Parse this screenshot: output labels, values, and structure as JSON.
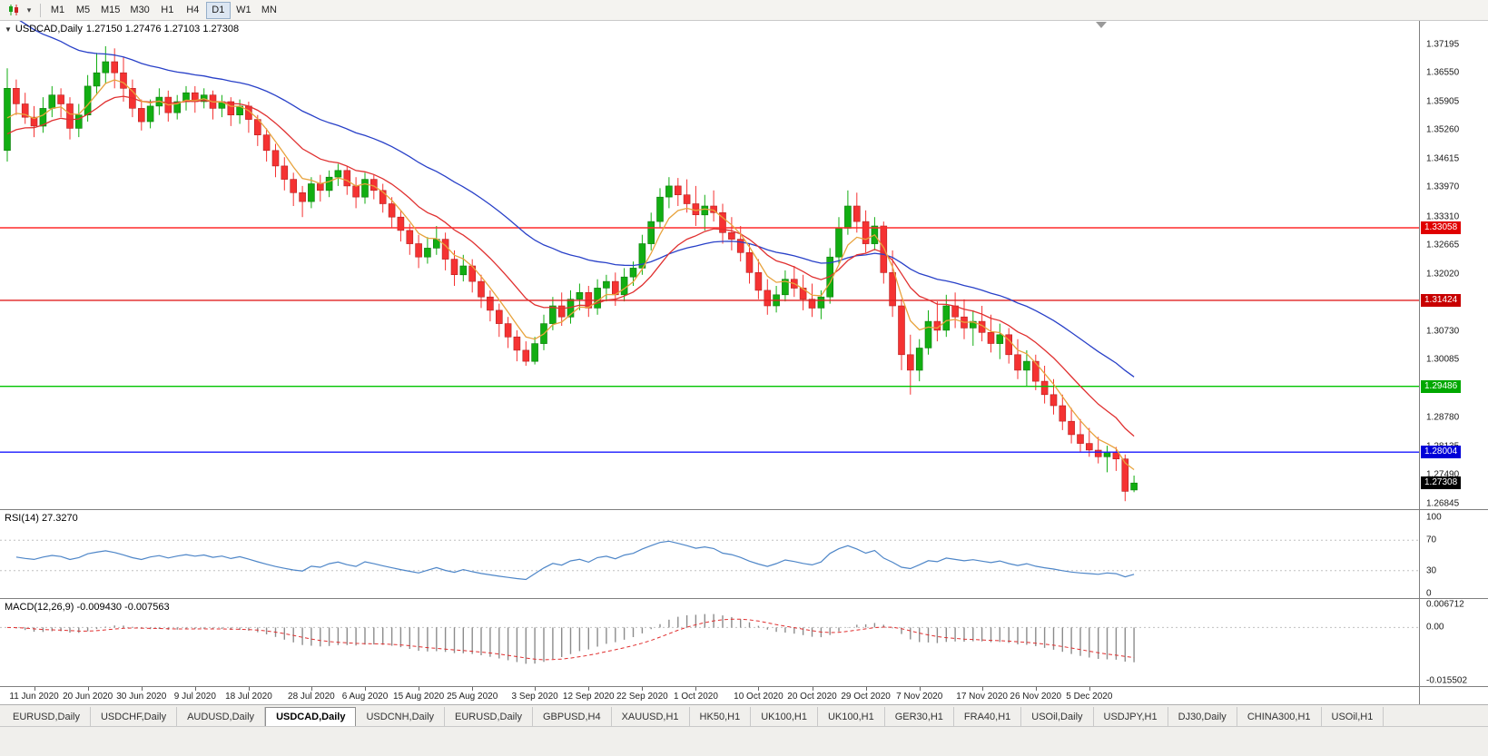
{
  "toolbar": {
    "dropdown_icon": "▾",
    "timeframes": [
      "M1",
      "M5",
      "M15",
      "M30",
      "H1",
      "H4",
      "D1",
      "W1",
      "MN"
    ],
    "selected": "D1"
  },
  "main_chart": {
    "marker_icon": "▼",
    "symbol": "USDCAD,Daily",
    "ohlc_text": "1.27150 1.27476 1.27103 1.27308"
  },
  "tabs": {
    "active_index": 3,
    "items": [
      "EURUSD,Daily",
      "USDCHF,Daily",
      "AUDUSD,Daily",
      "USDCAD,Daily",
      "USDCNH,Daily",
      "EURUSD,Daily",
      "GBPUSD,H4",
      "XAUUSD,H1",
      "HK50,H1",
      "UK100,H1",
      "UK100,H1",
      "GER30,H1",
      "FRA40,H1",
      "USOil,Daily",
      "USDJPY,H1",
      "DJ30,Daily",
      "CHINA300,H1",
      "USOil,H1"
    ]
  },
  "colors": {
    "candle_up": "#12AE12",
    "candle_up_border": "#0A7A0A",
    "candle_down": "#F53232",
    "candle_down_border": "#B61E1E",
    "grid_dash": "#C0C0C0",
    "shift_marker": "#999999"
  },
  "chart_data": {
    "type": "candlestick",
    "title": "USDCAD,Daily",
    "current_ohlc": {
      "open": "1.27150",
      "high": "1.27476",
      "low": "1.27103",
      "close": "1.27308"
    },
    "price_axis_range": [
      1.2672,
      1.3772
    ],
    "y_ticks": [
      "1.37195",
      "1.36550",
      "1.35905",
      "1.35260",
      "1.34615",
      "1.33970",
      "1.33310",
      "1.32665",
      "1.32020",
      "1.31375",
      "1.30730",
      "1.30085",
      "1.29440",
      "1.28780",
      "1.28135",
      "1.27490",
      "1.26845"
    ],
    "horizontal_lines": [
      {
        "label": "1.33058",
        "value": 1.33058,
        "color": "#FF2A2A",
        "badge": "#E00000"
      },
      {
        "label": "1.31424",
        "value": 1.31424,
        "color": "#E02020",
        "badge": "#C80000"
      },
      {
        "label": "1.29486",
        "value": 1.29486,
        "color": "#00C400",
        "badge": "#00A800"
      },
      {
        "label": "1.28004",
        "value": 1.28004,
        "color": "#1A1AFF",
        "badge": "#0000D8"
      }
    ],
    "current_price": {
      "label": "1.27308",
      "value": 1.27308,
      "badge": "#000000"
    },
    "moving_averages": [
      {
        "name": "ma-slow-blue",
        "period": 34,
        "seed": 1.38,
        "color": "#2840C8"
      },
      {
        "name": "ma-medium-red",
        "period": 13,
        "seed": 1.35,
        "color": "#E03030"
      },
      {
        "name": "ma-fast-orange",
        "period": 5,
        "seed": 1.352,
        "color": "#E8A33D"
      }
    ],
    "indicators": [
      {
        "name": "RSI",
        "label": "RSI(14) 27.3270",
        "period": 14,
        "last_value": 27.327,
        "ticks": [
          "100",
          "70",
          "30",
          "0"
        ],
        "levels": [
          70,
          30
        ],
        "range": [
          0,
          100
        ],
        "line_color": "#4E86C8"
      },
      {
        "name": "MACD",
        "label": "MACD(12,26,9) -0.009430 -0.007563",
        "fast": 12,
        "slow": 26,
        "signal": 9,
        "last_main": -0.00943,
        "last_signal": -0.007563,
        "ticks": [
          {
            "text": "0.006712",
            "value": 0.006712
          },
          {
            "text": "0.00",
            "value": 0
          },
          {
            "text": "-0.015502",
            "value": -0.015502
          }
        ],
        "range": [
          -0.015502,
          0.006712
        ],
        "histogram_color": "#8C8C8C",
        "signal_color": "#E03030"
      }
    ],
    "x_labels": [
      {
        "text": "11 Jun 2020",
        "index": 3
      },
      {
        "text": "20 Jun 2020",
        "index": 9
      },
      {
        "text": "30 Jun 2020",
        "index": 15
      },
      {
        "text": "9 Jul 2020",
        "index": 21
      },
      {
        "text": "18 Jul 2020",
        "index": 27
      },
      {
        "text": "28 Jul 2020",
        "index": 34
      },
      {
        "text": "6 Aug 2020",
        "index": 40
      },
      {
        "text": "15 Aug 2020",
        "index": 46
      },
      {
        "text": "25 Aug 2020",
        "index": 52
      },
      {
        "text": "3 Sep 2020",
        "index": 59
      },
      {
        "text": "12 Sep 2020",
        "index": 65
      },
      {
        "text": "22 Sep 2020",
        "index": 71
      },
      {
        "text": "1 Oct 2020",
        "index": 77
      },
      {
        "text": "10 Oct 2020",
        "index": 84
      },
      {
        "text": "20 Oct 2020",
        "index": 90
      },
      {
        "text": "29 Oct 2020",
        "index": 96
      },
      {
        "text": "7 Nov 2020",
        "index": 102
      },
      {
        "text": "17 Nov 2020",
        "index": 109
      },
      {
        "text": "26 Nov 2020",
        "index": 115
      },
      {
        "text": "5 Dec 2020",
        "index": 121
      }
    ],
    "candles": [
      [
        1.348,
        1.3665,
        1.3455,
        1.362
      ],
      [
        1.362,
        1.364,
        1.356,
        1.3585
      ],
      [
        1.3585,
        1.361,
        1.354,
        1.3555
      ],
      [
        1.3555,
        1.358,
        1.351,
        1.3535
      ],
      [
        1.3535,
        1.36,
        1.352,
        1.3575
      ],
      [
        1.3575,
        1.3625,
        1.3555,
        1.3605
      ],
      [
        1.3605,
        1.362,
        1.3555,
        1.3585
      ],
      [
        1.3585,
        1.36,
        1.3505,
        1.353
      ],
      [
        1.353,
        1.3585,
        1.351,
        1.356
      ],
      [
        1.356,
        1.365,
        1.3545,
        1.3625
      ],
      [
        1.3625,
        1.37,
        1.3605,
        1.3655
      ],
      [
        1.3655,
        1.3715,
        1.363,
        1.368
      ],
      [
        1.368,
        1.371,
        1.362,
        1.3655
      ],
      [
        1.3655,
        1.369,
        1.359,
        1.362
      ],
      [
        1.362,
        1.364,
        1.3555,
        1.3575
      ],
      [
        1.3575,
        1.3595,
        1.3525,
        1.3545
      ],
      [
        1.3545,
        1.3595,
        1.353,
        1.358
      ],
      [
        1.358,
        1.362,
        1.356,
        1.36
      ],
      [
        1.36,
        1.3615,
        1.3545,
        1.3565
      ],
      [
        1.3565,
        1.3605,
        1.355,
        1.359
      ],
      [
        1.359,
        1.3625,
        1.357,
        1.361
      ],
      [
        1.361,
        1.3625,
        1.3565,
        1.359
      ],
      [
        1.359,
        1.362,
        1.3575,
        1.3605
      ],
      [
        1.3605,
        1.3615,
        1.355,
        1.3575
      ],
      [
        1.3575,
        1.3605,
        1.3555,
        1.359
      ],
      [
        1.359,
        1.36,
        1.3535,
        1.356
      ],
      [
        1.356,
        1.3595,
        1.354,
        1.358
      ],
      [
        1.358,
        1.359,
        1.352,
        1.355
      ],
      [
        1.355,
        1.356,
        1.349,
        1.3515
      ],
      [
        1.3515,
        1.353,
        1.3455,
        1.348
      ],
      [
        1.348,
        1.3495,
        1.342,
        1.3445
      ],
      [
        1.3445,
        1.3465,
        1.339,
        1.3415
      ],
      [
        1.3415,
        1.343,
        1.3355,
        1.3385
      ],
      [
        1.3385,
        1.34,
        1.333,
        1.3365
      ],
      [
        1.3365,
        1.342,
        1.335,
        1.3405
      ],
      [
        1.3405,
        1.3425,
        1.3365,
        1.339
      ],
      [
        1.339,
        1.3435,
        1.3375,
        1.342
      ],
      [
        1.342,
        1.345,
        1.34,
        1.3435
      ],
      [
        1.3435,
        1.3445,
        1.338,
        1.34
      ],
      [
        1.34,
        1.342,
        1.335,
        1.3375
      ],
      [
        1.3375,
        1.343,
        1.336,
        1.3415
      ],
      [
        1.3415,
        1.3425,
        1.337,
        1.339
      ],
      [
        1.339,
        1.3405,
        1.334,
        1.336
      ],
      [
        1.336,
        1.3375,
        1.3305,
        1.333
      ],
      [
        1.333,
        1.3345,
        1.3275,
        1.33
      ],
      [
        1.33,
        1.3315,
        1.3245,
        1.327
      ],
      [
        1.327,
        1.329,
        1.3215,
        1.324
      ],
      [
        1.324,
        1.3285,
        1.3225,
        1.326
      ],
      [
        1.326,
        1.331,
        1.3245,
        1.328
      ],
      [
        1.328,
        1.3295,
        1.321,
        1.3235
      ],
      [
        1.3235,
        1.3255,
        1.3175,
        1.32
      ],
      [
        1.32,
        1.3245,
        1.3185,
        1.322
      ],
      [
        1.322,
        1.3235,
        1.316,
        1.3185
      ],
      [
        1.3185,
        1.32,
        1.3125,
        1.315
      ],
      [
        1.315,
        1.3165,
        1.3095,
        1.312
      ],
      [
        1.312,
        1.3135,
        1.306,
        1.309
      ],
      [
        1.309,
        1.3105,
        1.3035,
        1.306
      ],
      [
        1.306,
        1.3075,
        1.3005,
        1.303
      ],
      [
        1.303,
        1.305,
        1.2995,
        1.3005
      ],
      [
        1.3005,
        1.306,
        1.2998,
        1.3045
      ],
      [
        1.3045,
        1.311,
        1.303,
        1.309
      ],
      [
        1.309,
        1.315,
        1.3075,
        1.313
      ],
      [
        1.313,
        1.316,
        1.3085,
        1.3105
      ],
      [
        1.3105,
        1.3165,
        1.309,
        1.3145
      ],
      [
        1.3145,
        1.318,
        1.312,
        1.316
      ],
      [
        1.316,
        1.3175,
        1.3105,
        1.3125
      ],
      [
        1.3125,
        1.319,
        1.311,
        1.317
      ],
      [
        1.317,
        1.32,
        1.314,
        1.3185
      ],
      [
        1.3185,
        1.3205,
        1.313,
        1.3155
      ],
      [
        1.3155,
        1.3215,
        1.314,
        1.3195
      ],
      [
        1.3195,
        1.323,
        1.3175,
        1.3215
      ],
      [
        1.3215,
        1.329,
        1.32,
        1.327
      ],
      [
        1.327,
        1.334,
        1.3255,
        1.332
      ],
      [
        1.332,
        1.3395,
        1.3305,
        1.3375
      ],
      [
        1.3375,
        1.342,
        1.335,
        1.34
      ],
      [
        1.34,
        1.3418,
        1.3355,
        1.338
      ],
      [
        1.338,
        1.3415,
        1.334,
        1.336
      ],
      [
        1.336,
        1.34,
        1.331,
        1.3335
      ],
      [
        1.3335,
        1.338,
        1.33,
        1.3355
      ],
      [
        1.3355,
        1.339,
        1.332,
        1.334
      ],
      [
        1.334,
        1.336,
        1.327,
        1.3295
      ],
      [
        1.3295,
        1.333,
        1.3255,
        1.328
      ],
      [
        1.328,
        1.331,
        1.323,
        1.325
      ],
      [
        1.325,
        1.327,
        1.318,
        1.3205
      ],
      [
        1.3205,
        1.3235,
        1.3145,
        1.3165
      ],
      [
        1.3165,
        1.319,
        1.311,
        1.313
      ],
      [
        1.313,
        1.3175,
        1.3115,
        1.3155
      ],
      [
        1.3155,
        1.321,
        1.314,
        1.319
      ],
      [
        1.319,
        1.322,
        1.315,
        1.317
      ],
      [
        1.317,
        1.32,
        1.312,
        1.3145
      ],
      [
        1.3145,
        1.318,
        1.3105,
        1.3125
      ],
      [
        1.3125,
        1.3165,
        1.31,
        1.315
      ],
      [
        1.315,
        1.326,
        1.3135,
        1.324
      ],
      [
        1.324,
        1.333,
        1.3225,
        1.3305
      ],
      [
        1.3305,
        1.339,
        1.329,
        1.3355
      ],
      [
        1.3355,
        1.3385,
        1.3295,
        1.332
      ],
      [
        1.332,
        1.3345,
        1.325,
        1.327
      ],
      [
        1.327,
        1.333,
        1.3255,
        1.331
      ],
      [
        1.331,
        1.332,
        1.318,
        1.3205
      ],
      [
        1.3205,
        1.3255,
        1.3105,
        1.313
      ],
      [
        1.313,
        1.3145,
        1.2985,
        1.302
      ],
      [
        1.302,
        1.3065,
        1.293,
        1.2985
      ],
      [
        1.2985,
        1.3055,
        1.296,
        1.3035
      ],
      [
        1.3035,
        1.312,
        1.302,
        1.3095
      ],
      [
        1.3095,
        1.314,
        1.305,
        1.3075
      ],
      [
        1.3075,
        1.3155,
        1.306,
        1.313
      ],
      [
        1.313,
        1.316,
        1.308,
        1.3105
      ],
      [
        1.3105,
        1.3145,
        1.3055,
        1.308
      ],
      [
        1.308,
        1.312,
        1.304,
        1.3095
      ],
      [
        1.3095,
        1.313,
        1.305,
        1.307
      ],
      [
        1.307,
        1.311,
        1.3025,
        1.3045
      ],
      [
        1.3045,
        1.309,
        1.301,
        1.3065
      ],
      [
        1.3065,
        1.308,
        1.3,
        1.302
      ],
      [
        1.302,
        1.3055,
        1.2965,
        1.2985
      ],
      [
        1.2985,
        1.303,
        1.295,
        1.3005
      ],
      [
        1.3005,
        1.302,
        1.294,
        1.296
      ],
      [
        1.296,
        1.2995,
        1.291,
        1.293
      ],
      [
        1.293,
        1.2965,
        1.2885,
        1.2905
      ],
      [
        1.2905,
        1.293,
        1.285,
        1.287
      ],
      [
        1.287,
        1.29,
        1.282,
        1.284
      ],
      [
        1.284,
        1.2875,
        1.28,
        1.282
      ],
      [
        1.282,
        1.2855,
        1.279,
        1.2805
      ],
      [
        1.2805,
        1.2835,
        1.2775,
        1.279
      ],
      [
        1.279,
        1.2815,
        1.2755,
        1.28
      ],
      [
        1.28,
        1.2812,
        1.2758,
        1.2785
      ],
      [
        1.2785,
        1.2795,
        1.269,
        1.2712
      ],
      [
        1.2715,
        1.27476,
        1.27103,
        1.27308
      ]
    ]
  }
}
